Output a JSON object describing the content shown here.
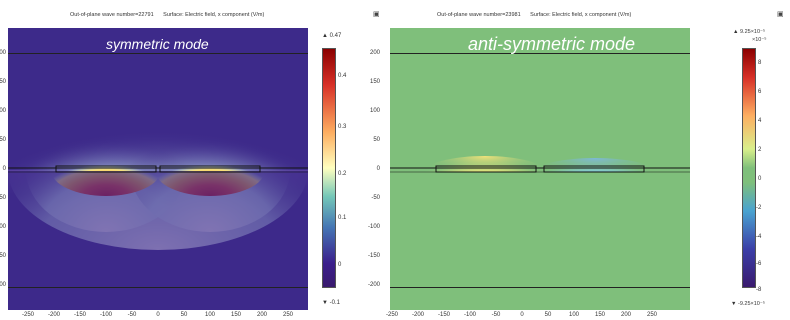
{
  "panels": [
    {
      "id": "left",
      "header_wave": "Out-of-plane wave number=22791",
      "header_surface": "Surface: Electric field, x component (V/m)",
      "mode_label": "symmetric mode",
      "colorbar": {
        "max_label": "0.47",
        "min_label": "-0.1",
        "ticks": [
          "0.4",
          "0.3",
          "0.2",
          "0.1",
          "0"
        ],
        "colors": [
          "#8b0000",
          "#d73027",
          "#fdae61",
          "#ffffbf",
          "#74c7b8",
          "#4575b4",
          "#3b1f8c",
          "#3a1a6e"
        ]
      },
      "background": "#3d2a8a"
    },
    {
      "id": "right",
      "header_wave": "Out-of-plane wave number=23981",
      "header_surface": "Surface: Electric field, x component (V/m)",
      "mode_label": "anti-symmetric mode",
      "colorbar": {
        "max_label": "9.25×10⁻⁵",
        "min_label": "-9.25×10⁻⁵",
        "exponent": "×10⁻⁵",
        "ticks": [
          "8",
          "6",
          "4",
          "2",
          "0",
          "-2",
          "-4",
          "-6",
          "-8"
        ],
        "colors": [
          "#8b0000",
          "#d73027",
          "#fdae61",
          "#d9ef8b",
          "#7fbf7b",
          "#7fbf7b",
          "#4aa3d0",
          "#3b3fa8",
          "#3a1a6e"
        ]
      },
      "background": "#7fbf7b"
    }
  ],
  "y_ticks": [
    "200",
    "150",
    "100",
    "50",
    "0",
    "-50",
    "-100",
    "-150",
    "-200"
  ],
  "x_ticks": [
    "-250",
    "-200",
    "-150",
    "-100",
    "-50",
    "0",
    "50",
    "100",
    "150",
    "200",
    "250"
  ],
  "icons": {
    "colorbar_max": "triangle-up-icon",
    "colorbar_min": "triangle-down-icon",
    "export": "camera-icon"
  }
}
